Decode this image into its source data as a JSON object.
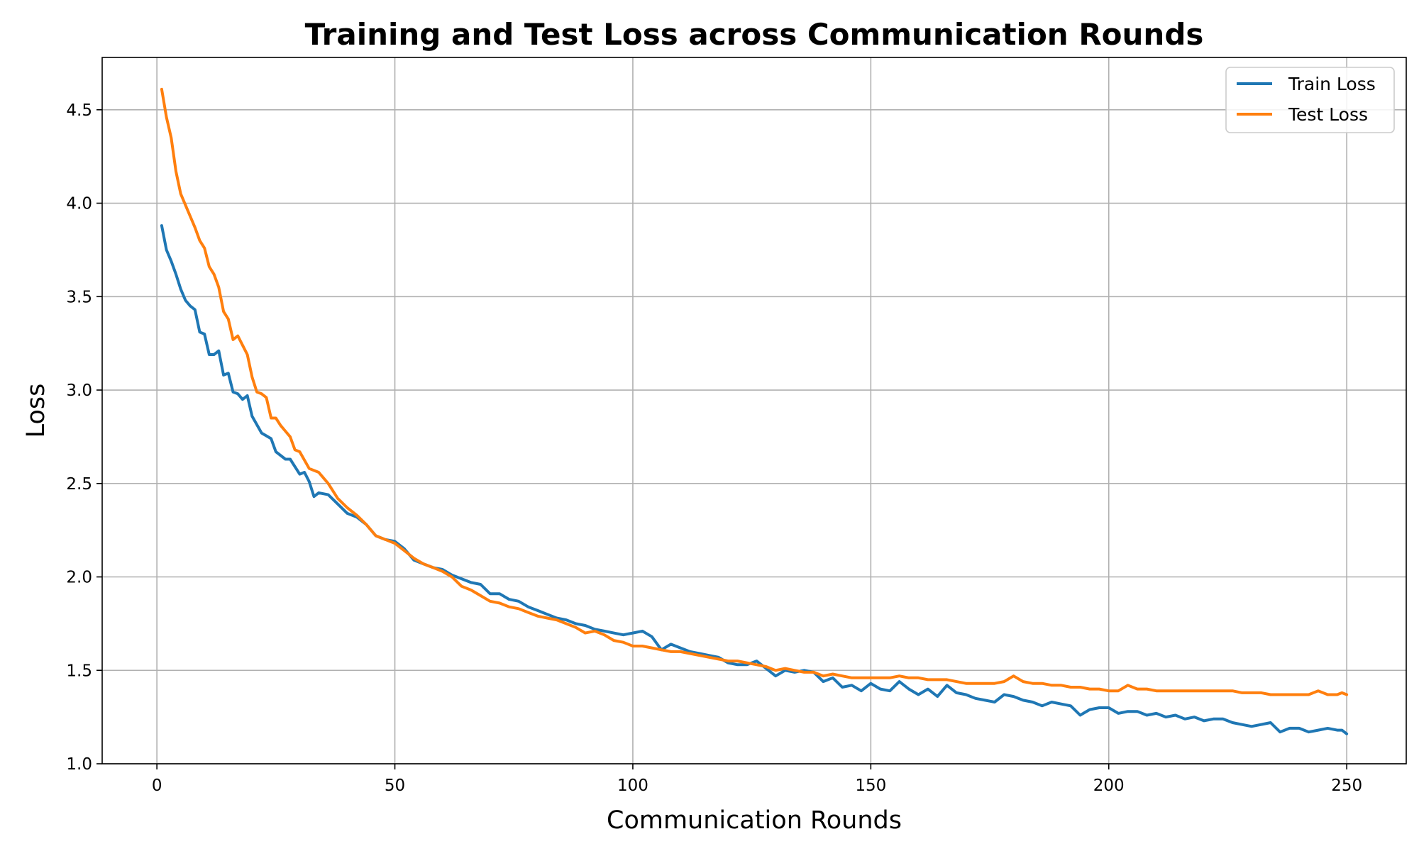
{
  "chart_data": {
    "type": "line",
    "title": "Training and Test Loss across Communication Rounds",
    "xlabel": "Communication Rounds",
    "ylabel": "Loss",
    "xlim": [
      -11.5,
      262.5
    ],
    "ylim": [
      1.0,
      4.78
    ],
    "xticks": [
      0,
      50,
      100,
      150,
      200,
      250
    ],
    "yticks": [
      1.0,
      1.5,
      2.0,
      2.5,
      3.0,
      3.5,
      4.0,
      4.5
    ],
    "ytick_labels": [
      "1.0",
      "1.5",
      "2.0",
      "2.5",
      "3.0",
      "3.5",
      "4.0",
      "4.5"
    ],
    "grid": true,
    "legend_position": "top-right",
    "series": [
      {
        "name": "Train Loss",
        "color": "#1f77b4",
        "points": [
          [
            1,
            3.88
          ],
          [
            2,
            3.75
          ],
          [
            3,
            3.69
          ],
          [
            4,
            3.62
          ],
          [
            5,
            3.54
          ],
          [
            6,
            3.48
          ],
          [
            7,
            3.45
          ],
          [
            8,
            3.43
          ],
          [
            9,
            3.31
          ],
          [
            10,
            3.3
          ],
          [
            11,
            3.19
          ],
          [
            12,
            3.19
          ],
          [
            13,
            3.21
          ],
          [
            14,
            3.08
          ],
          [
            15,
            3.09
          ],
          [
            16,
            2.99
          ],
          [
            17,
            2.98
          ],
          [
            18,
            2.95
          ],
          [
            19,
            2.97
          ],
          [
            20,
            2.86
          ],
          [
            22,
            2.77
          ],
          [
            24,
            2.74
          ],
          [
            25,
            2.67
          ],
          [
            27,
            2.63
          ],
          [
            28,
            2.63
          ],
          [
            30,
            2.55
          ],
          [
            31,
            2.56
          ],
          [
            32,
            2.51
          ],
          [
            33,
            2.43
          ],
          [
            34,
            2.45
          ],
          [
            36,
            2.44
          ],
          [
            38,
            2.39
          ],
          [
            40,
            2.34
          ],
          [
            42,
            2.32
          ],
          [
            44,
            2.28
          ],
          [
            46,
            2.22
          ],
          [
            48,
            2.2
          ],
          [
            50,
            2.19
          ],
          [
            52,
            2.15
          ],
          [
            54,
            2.09
          ],
          [
            56,
            2.07
          ],
          [
            58,
            2.05
          ],
          [
            60,
            2.04
          ],
          [
            62,
            2.01
          ],
          [
            64,
            1.99
          ],
          [
            66,
            1.97
          ],
          [
            68,
            1.96
          ],
          [
            70,
            1.91
          ],
          [
            72,
            1.91
          ],
          [
            74,
            1.88
          ],
          [
            76,
            1.87
          ],
          [
            78,
            1.84
          ],
          [
            80,
            1.82
          ],
          [
            82,
            1.8
          ],
          [
            84,
            1.78
          ],
          [
            86,
            1.77
          ],
          [
            88,
            1.75
          ],
          [
            90,
            1.74
          ],
          [
            92,
            1.72
          ],
          [
            94,
            1.71
          ],
          [
            96,
            1.7
          ],
          [
            98,
            1.69
          ],
          [
            100,
            1.7
          ],
          [
            102,
            1.71
          ],
          [
            104,
            1.68
          ],
          [
            106,
            1.61
          ],
          [
            108,
            1.64
          ],
          [
            110,
            1.62
          ],
          [
            112,
            1.6
          ],
          [
            114,
            1.59
          ],
          [
            116,
            1.58
          ],
          [
            118,
            1.57
          ],
          [
            120,
            1.54
          ],
          [
            122,
            1.53
          ],
          [
            124,
            1.53
          ],
          [
            126,
            1.55
          ],
          [
            128,
            1.51
          ],
          [
            130,
            1.47
          ],
          [
            132,
            1.5
          ],
          [
            134,
            1.49
          ],
          [
            136,
            1.5
          ],
          [
            138,
            1.49
          ],
          [
            140,
            1.44
          ],
          [
            142,
            1.46
          ],
          [
            144,
            1.41
          ],
          [
            146,
            1.42
          ],
          [
            148,
            1.39
          ],
          [
            150,
            1.43
          ],
          [
            152,
            1.4
          ],
          [
            154,
            1.39
          ],
          [
            156,
            1.44
          ],
          [
            158,
            1.4
          ],
          [
            160,
            1.37
          ],
          [
            162,
            1.4
          ],
          [
            164,
            1.36
          ],
          [
            166,
            1.42
          ],
          [
            168,
            1.38
          ],
          [
            170,
            1.37
          ],
          [
            172,
            1.35
          ],
          [
            174,
            1.34
          ],
          [
            176,
            1.33
          ],
          [
            178,
            1.37
          ],
          [
            180,
            1.36
          ],
          [
            182,
            1.34
          ],
          [
            184,
            1.33
          ],
          [
            186,
            1.31
          ],
          [
            188,
            1.33
          ],
          [
            190,
            1.32
          ],
          [
            192,
            1.31
          ],
          [
            194,
            1.26
          ],
          [
            196,
            1.29
          ],
          [
            198,
            1.3
          ],
          [
            200,
            1.3
          ],
          [
            202,
            1.27
          ],
          [
            204,
            1.28
          ],
          [
            206,
            1.28
          ],
          [
            208,
            1.26
          ],
          [
            210,
            1.27
          ],
          [
            212,
            1.25
          ],
          [
            214,
            1.26
          ],
          [
            216,
            1.24
          ],
          [
            218,
            1.25
          ],
          [
            220,
            1.23
          ],
          [
            222,
            1.24
          ],
          [
            224,
            1.24
          ],
          [
            226,
            1.22
          ],
          [
            228,
            1.21
          ],
          [
            230,
            1.2
          ],
          [
            232,
            1.21
          ],
          [
            234,
            1.22
          ],
          [
            236,
            1.17
          ],
          [
            238,
            1.19
          ],
          [
            240,
            1.19
          ],
          [
            242,
            1.17
          ],
          [
            244,
            1.18
          ],
          [
            246,
            1.19
          ],
          [
            248,
            1.18
          ],
          [
            249,
            1.18
          ],
          [
            250,
            1.16
          ]
        ]
      },
      {
        "name": "Test Loss",
        "color": "#ff7f0e",
        "points": [
          [
            1,
            4.61
          ],
          [
            2,
            4.46
          ],
          [
            3,
            4.35
          ],
          [
            4,
            4.17
          ],
          [
            5,
            4.05
          ],
          [
            6,
            3.99
          ],
          [
            7,
            3.93
          ],
          [
            8,
            3.87
          ],
          [
            9,
            3.8
          ],
          [
            10,
            3.76
          ],
          [
            11,
            3.66
          ],
          [
            12,
            3.62
          ],
          [
            13,
            3.55
          ],
          [
            14,
            3.42
          ],
          [
            15,
            3.38
          ],
          [
            16,
            3.27
          ],
          [
            17,
            3.29
          ],
          [
            18,
            3.24
          ],
          [
            19,
            3.19
          ],
          [
            20,
            3.07
          ],
          [
            21,
            2.99
          ],
          [
            22,
            2.98
          ],
          [
            23,
            2.96
          ],
          [
            24,
            2.85
          ],
          [
            25,
            2.85
          ],
          [
            26,
            2.81
          ],
          [
            27,
            2.78
          ],
          [
            28,
            2.75
          ],
          [
            29,
            2.68
          ],
          [
            30,
            2.67
          ],
          [
            32,
            2.58
          ],
          [
            34,
            2.56
          ],
          [
            36,
            2.5
          ],
          [
            38,
            2.42
          ],
          [
            40,
            2.37
          ],
          [
            42,
            2.33
          ],
          [
            44,
            2.28
          ],
          [
            46,
            2.22
          ],
          [
            48,
            2.2
          ],
          [
            50,
            2.18
          ],
          [
            52,
            2.14
          ],
          [
            54,
            2.1
          ],
          [
            56,
            2.07
          ],
          [
            58,
            2.05
          ],
          [
            60,
            2.03
          ],
          [
            62,
            2.0
          ],
          [
            64,
            1.95
          ],
          [
            66,
            1.93
          ],
          [
            68,
            1.9
          ],
          [
            70,
            1.87
          ],
          [
            72,
            1.86
          ],
          [
            74,
            1.84
          ],
          [
            76,
            1.83
          ],
          [
            78,
            1.81
          ],
          [
            80,
            1.79
          ],
          [
            82,
            1.78
          ],
          [
            84,
            1.77
          ],
          [
            86,
            1.75
          ],
          [
            88,
            1.73
          ],
          [
            90,
            1.7
          ],
          [
            92,
            1.71
          ],
          [
            94,
            1.69
          ],
          [
            96,
            1.66
          ],
          [
            98,
            1.65
          ],
          [
            100,
            1.63
          ],
          [
            102,
            1.63
          ],
          [
            104,
            1.62
          ],
          [
            106,
            1.61
          ],
          [
            108,
            1.6
          ],
          [
            110,
            1.6
          ],
          [
            112,
            1.59
          ],
          [
            114,
            1.58
          ],
          [
            116,
            1.57
          ],
          [
            118,
            1.56
          ],
          [
            120,
            1.55
          ],
          [
            122,
            1.55
          ],
          [
            124,
            1.54
          ],
          [
            126,
            1.53
          ],
          [
            128,
            1.52
          ],
          [
            130,
            1.5
          ],
          [
            132,
            1.51
          ],
          [
            134,
            1.5
          ],
          [
            136,
            1.49
          ],
          [
            138,
            1.49
          ],
          [
            140,
            1.47
          ],
          [
            142,
            1.48
          ],
          [
            144,
            1.47
          ],
          [
            146,
            1.46
          ],
          [
            148,
            1.46
          ],
          [
            150,
            1.46
          ],
          [
            152,
            1.46
          ],
          [
            154,
            1.46
          ],
          [
            156,
            1.47
          ],
          [
            158,
            1.46
          ],
          [
            160,
            1.46
          ],
          [
            162,
            1.45
          ],
          [
            164,
            1.45
          ],
          [
            166,
            1.45
          ],
          [
            168,
            1.44
          ],
          [
            170,
            1.43
          ],
          [
            172,
            1.43
          ],
          [
            174,
            1.43
          ],
          [
            176,
            1.43
          ],
          [
            178,
            1.44
          ],
          [
            180,
            1.47
          ],
          [
            182,
            1.44
          ],
          [
            184,
            1.43
          ],
          [
            186,
            1.43
          ],
          [
            188,
            1.42
          ],
          [
            190,
            1.42
          ],
          [
            192,
            1.41
          ],
          [
            194,
            1.41
          ],
          [
            196,
            1.4
          ],
          [
            198,
            1.4
          ],
          [
            200,
            1.39
          ],
          [
            202,
            1.39
          ],
          [
            204,
            1.42
          ],
          [
            206,
            1.4
          ],
          [
            208,
            1.4
          ],
          [
            210,
            1.39
          ],
          [
            212,
            1.39
          ],
          [
            214,
            1.39
          ],
          [
            216,
            1.39
          ],
          [
            218,
            1.39
          ],
          [
            220,
            1.39
          ],
          [
            222,
            1.39
          ],
          [
            224,
            1.39
          ],
          [
            226,
            1.39
          ],
          [
            228,
            1.38
          ],
          [
            230,
            1.38
          ],
          [
            232,
            1.38
          ],
          [
            234,
            1.37
          ],
          [
            236,
            1.37
          ],
          [
            238,
            1.37
          ],
          [
            240,
            1.37
          ],
          [
            242,
            1.37
          ],
          [
            244,
            1.39
          ],
          [
            246,
            1.37
          ],
          [
            248,
            1.37
          ],
          [
            249,
            1.38
          ],
          [
            250,
            1.37
          ]
        ]
      }
    ]
  }
}
